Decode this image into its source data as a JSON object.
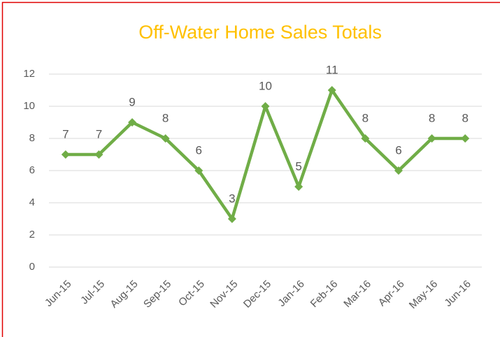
{
  "chart_data": {
    "type": "line",
    "title": "Off-Water Home Sales Totals",
    "categories": [
      "Jun-15",
      "Jul-15",
      "Aug-15",
      "Sep-15",
      "Oct-15",
      "Nov-15",
      "Dec-15",
      "Jan-16",
      "Feb-16",
      "Mar-16",
      "Apr-16",
      "May-16",
      "Jun-16"
    ],
    "values": [
      7,
      7,
      9,
      8,
      6,
      3,
      10,
      5,
      11,
      8,
      6,
      8,
      8
    ],
    "color": "#70ad47",
    "title_color": "#ffc000",
    "ylim": [
      0,
      12
    ],
    "yticks": [
      0,
      2,
      4,
      6,
      8,
      10,
      12
    ],
    "grid": true
  }
}
